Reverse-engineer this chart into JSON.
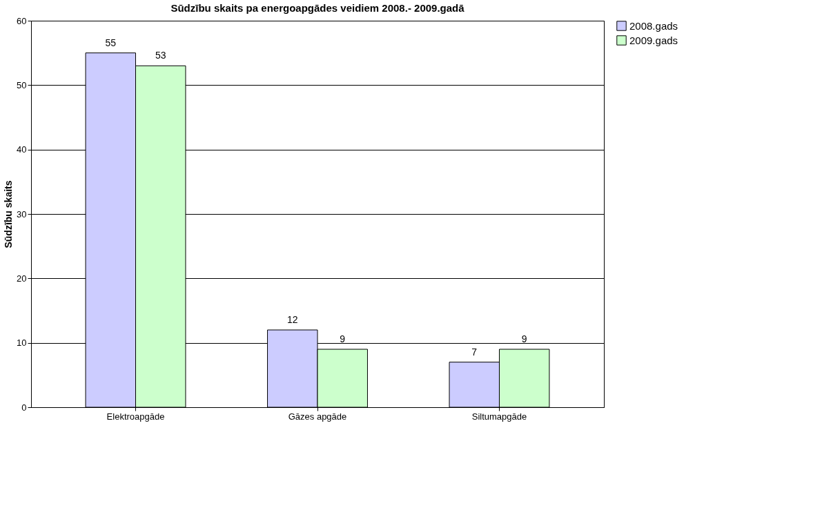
{
  "chart_data": {
    "type": "bar",
    "title": "Sūdzību skaits pa energoapgādes veidiem 2008.- 2009.gadā",
    "ylabel": "Sūdzību skaits",
    "categories": [
      "Elektroapgāde",
      "Gāzes apgāde",
      "Siltumapgāde"
    ],
    "series": [
      {
        "name": "2008.gads",
        "color": "#ccccff",
        "values": [
          55,
          12,
          7
        ]
      },
      {
        "name": "2009.gads",
        "color": "#ccffcc",
        "values": [
          53,
          9,
          9
        ]
      }
    ],
    "ylim": [
      0,
      60
    ],
    "yticks": [
      0,
      10,
      20,
      30,
      40,
      50,
      60
    ],
    "grid": "y",
    "legend": "right",
    "data_labels": true
  }
}
